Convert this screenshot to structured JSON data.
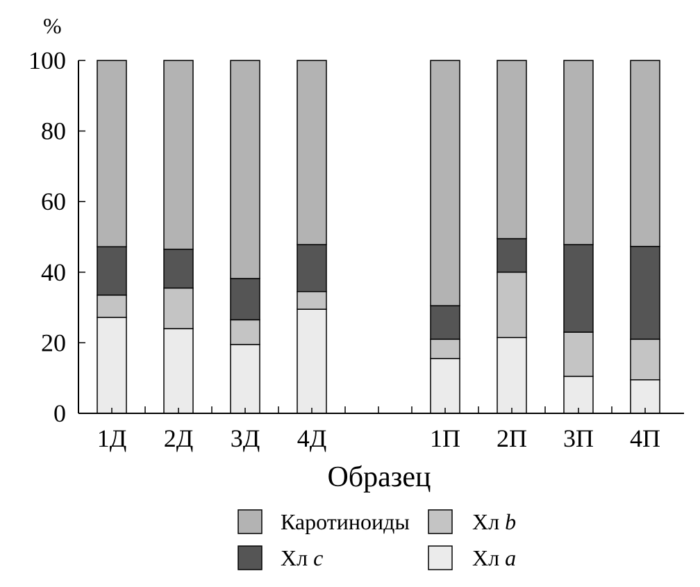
{
  "chart_data": {
    "type": "bar",
    "stacked": true,
    "unit_label": "%",
    "xlabel": "Образец",
    "ylabel": "",
    "ylim": [
      0,
      100
    ],
    "yticks": [
      0,
      20,
      40,
      60,
      80,
      100
    ],
    "grid": false,
    "legend_position": "bottom",
    "categories": [
      "1Д",
      "2Д",
      "3Д",
      "4Д",
      "1П",
      "2П",
      "3П",
      "4П"
    ],
    "series": [
      {
        "name_prefix": "Хл",
        "name_suffix": "a",
        "color": "#ebebeb",
        "values": [
          27.2,
          24.0,
          19.5,
          29.5,
          15.5,
          21.5,
          10.5,
          9.5
        ]
      },
      {
        "name_prefix": "Хл",
        "name_suffix": "b",
        "color": "#c4c4c4",
        "values": [
          6.3,
          11.5,
          7.0,
          5.0,
          5.5,
          18.5,
          12.5,
          11.5
        ]
      },
      {
        "name_prefix": "Хл",
        "name_suffix": "c",
        "color": "#555555",
        "values": [
          13.7,
          11.0,
          11.7,
          13.3,
          9.5,
          9.5,
          24.8,
          26.3
        ]
      },
      {
        "name_prefix": "Каротиноиды",
        "name_suffix": "",
        "color": "#b3b3b3",
        "values": [
          52.8,
          53.5,
          61.8,
          52.2,
          69.5,
          50.5,
          52.2,
          52.7
        ]
      }
    ],
    "legend_order": [
      3,
      1,
      2,
      0
    ]
  }
}
